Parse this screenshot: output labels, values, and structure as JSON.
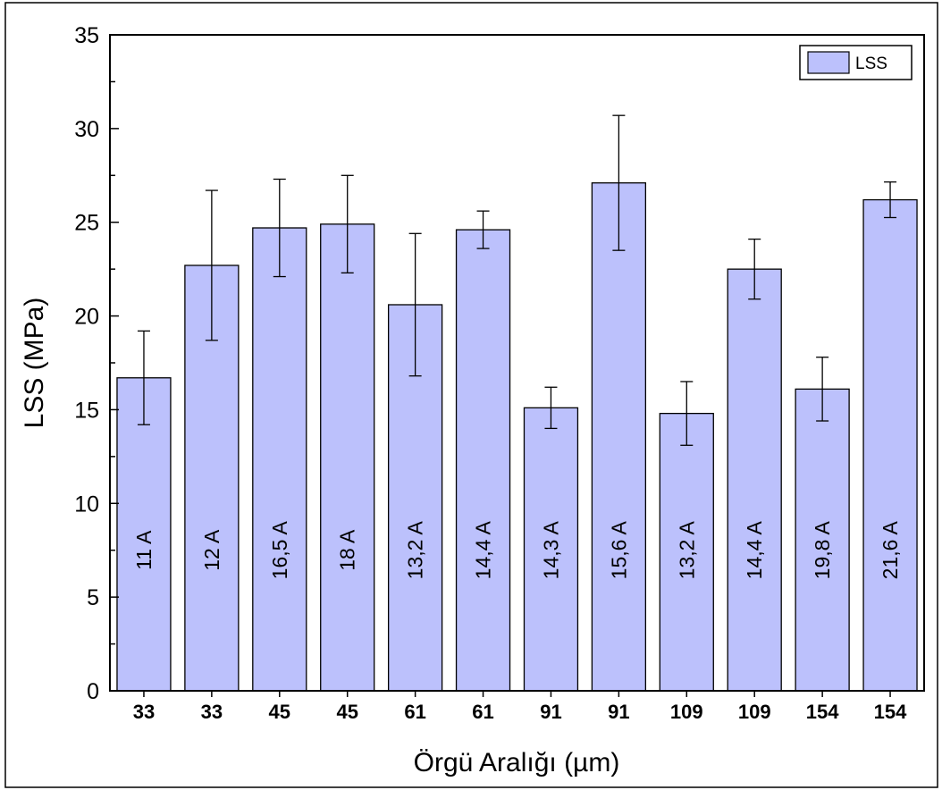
{
  "chart_data": {
    "type": "bar",
    "xlabel": "Örgü Aralığı (µm)",
    "ylabel": "LSS (MPa)",
    "ylim": [
      0,
      35
    ],
    "yticks": [
      "0",
      "5",
      "10",
      "15",
      "20",
      "25",
      "30",
      "35"
    ],
    "categories": [
      "33",
      "33",
      "45",
      "45",
      "61",
      "61",
      "91",
      "91",
      "109",
      "109",
      "154",
      "154"
    ],
    "series": [
      {
        "name": "LSS",
        "color": "#bcc1fc",
        "values": [
          16.7,
          22.7,
          24.7,
          24.9,
          20.6,
          24.6,
          15.1,
          27.1,
          14.8,
          22.5,
          16.1,
          26.2
        ],
        "error": [
          2.5,
          4.0,
          2.6,
          2.6,
          3.8,
          1.0,
          1.1,
          3.6,
          1.7,
          1.6,
          1.7,
          0.95
        ]
      }
    ],
    "bar_labels": [
      "11 A",
      "12 A",
      "16,5 A",
      "18 A",
      "13,2 A",
      "14,4 A",
      "14,3 A",
      "15,6 A",
      "13,2 A",
      "14,4 A",
      "19,8 A",
      "21,6 A"
    ],
    "legend": {
      "position": "top-right",
      "entries": [
        "LSS"
      ]
    },
    "grid": false
  }
}
